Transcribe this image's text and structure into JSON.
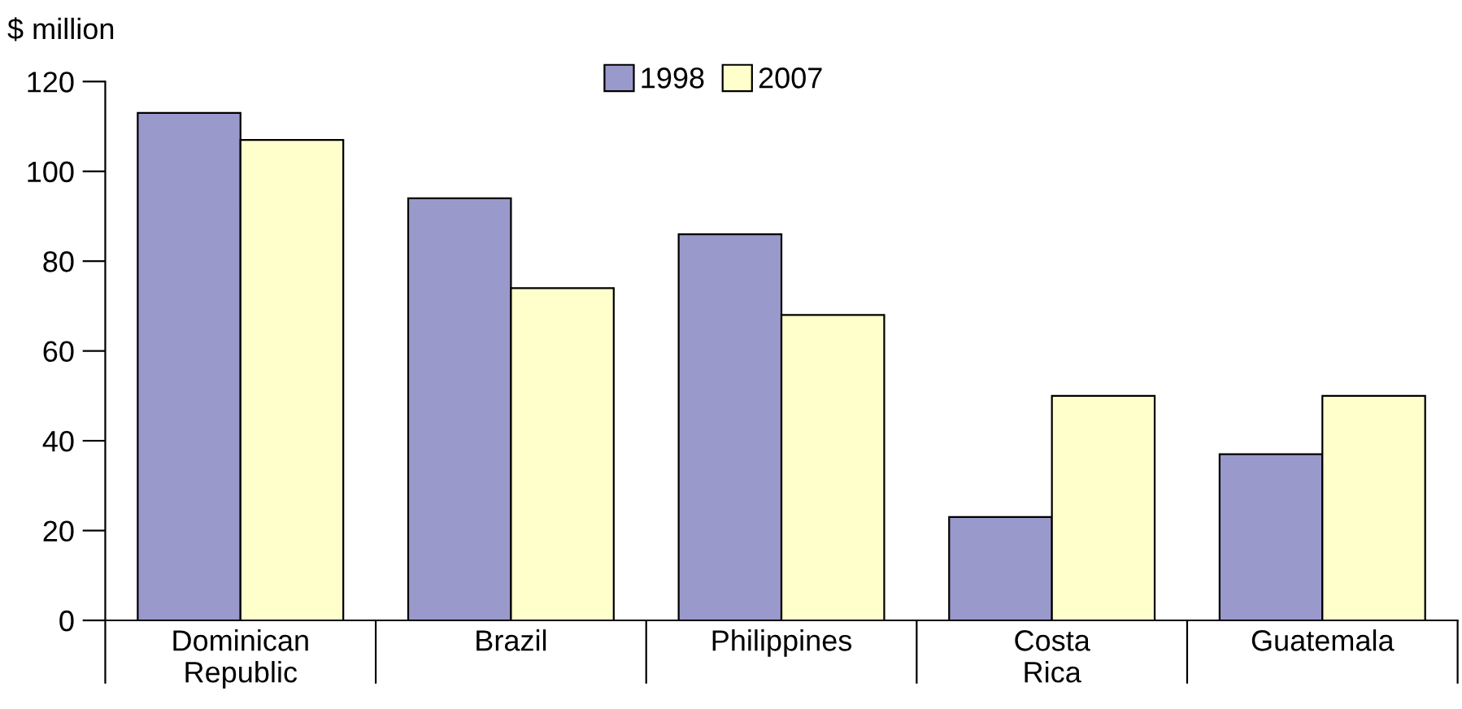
{
  "chart_data": {
    "type": "bar",
    "ylabel": "$ million",
    "categories": [
      "Dominican\nRepublic",
      "Brazil",
      "Philippines",
      "Costa\nRica",
      "Guatemala"
    ],
    "series": [
      {
        "name": "1998",
        "color": "#9999cc",
        "values": [
          113,
          94,
          86,
          23,
          37
        ]
      },
      {
        "name": "2007",
        "color": "#ffffcc",
        "values": [
          107,
          74,
          68,
          50,
          50
        ]
      }
    ],
    "ylim": [
      0,
      120
    ],
    "yticks": [
      0,
      20,
      40,
      60,
      80,
      100,
      120
    ],
    "grid": false,
    "legend": "top"
  }
}
